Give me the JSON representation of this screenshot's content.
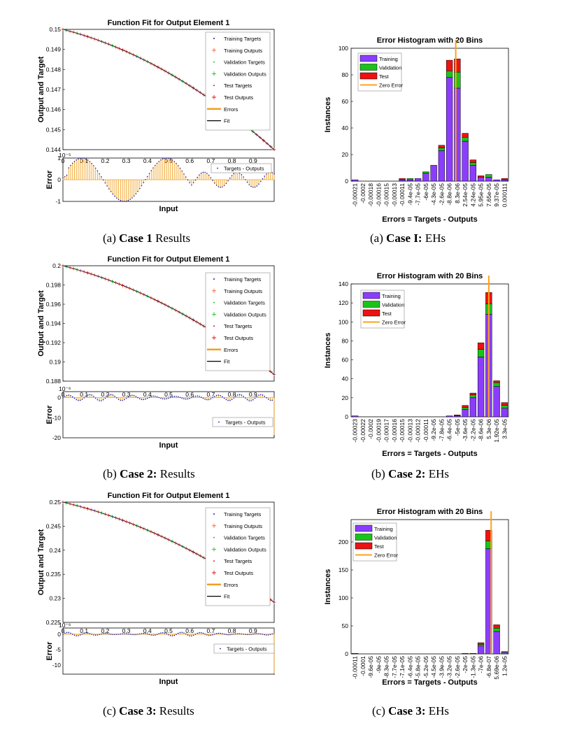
{
  "colors": {
    "training": "#8b3dff",
    "validation": "#19c419",
    "test": "#ee1111",
    "zero_error": "#ffa21a",
    "errors": "#f0a020",
    "target_dot": "#1a1aa0"
  },
  "chart_data": [
    {
      "type": "line",
      "id": "fit1",
      "title": "Function Fit for Output Element 1",
      "ylabel": "Output and Target",
      "y_ticks": [
        "0.15",
        "0.149",
        "0.148",
        "0.147",
        "0.146",
        "0.145",
        "0.144"
      ],
      "ylim": [
        0.144,
        0.15
      ],
      "x_ticks": [
        "0",
        "0.1",
        "0.2",
        "0.3",
        "0.4",
        "0.5",
        "0.6",
        "0.7",
        "0.8",
        "0.9"
      ],
      "xlim": [
        0,
        1
      ],
      "curve": {
        "start": 0.15,
        "end": 0.144,
        "shape": 0.55
      },
      "legend": [
        "Training Targets",
        "Training Outputs",
        "Validation Targets",
        "Validation Outputs",
        "Test Targets",
        "Test Outputs",
        "Errors",
        "Fit"
      ],
      "error": {
        "ylabel": "Error",
        "xlabel": "Input",
        "exponent": "10⁻⁵",
        "y_ticks": [
          "1",
          "0",
          "-1"
        ],
        "ylim": [
          -1,
          1
        ],
        "legend": "Targets - Outputs",
        "pattern": "wave1"
      },
      "caption": {
        "prefix": "(a) ",
        "bold": "Case 1",
        "suffix": " Results"
      }
    },
    {
      "type": "bar",
      "id": "hist1",
      "title": "Error Histogram with 20 Bins",
      "ylabel": "Instances",
      "xlabel": "Errors = Targets - Outputs",
      "y_ticks": [
        "100",
        "80",
        "60",
        "40",
        "20",
        "0"
      ],
      "ylim": [
        0,
        100
      ],
      "categories": [
        "-0.00021",
        "-0.0002",
        "-0.00018",
        "-0.00016",
        "-0.00015",
        "-0.00013",
        "-0.00011",
        "-9.4e-05",
        "-7.7e-05",
        "-6e-05",
        "-4.3e-05",
        "-2.6e-05",
        "-8.8e-06",
        "8.3e-06",
        "2.54e-05",
        "4.24e-05",
        "5.95e-05",
        "7.65e-05",
        "9.37e-05",
        "0.000111"
      ],
      "series": [
        {
          "name": "Training",
          "values": [
            1,
            0,
            0,
            0,
            0,
            0,
            1,
            1,
            2,
            6,
            12,
            23,
            78,
            70,
            30,
            12,
            3,
            3,
            1,
            1
          ]
        },
        {
          "name": "Validation",
          "values": [
            0,
            0,
            0,
            0,
            0,
            0,
            0,
            1,
            0,
            1,
            0,
            2,
            5,
            12,
            3,
            2,
            0,
            2,
            0,
            0
          ]
        },
        {
          "name": "Test",
          "values": [
            0,
            0,
            0,
            0,
            0,
            0,
            1,
            0,
            0,
            0,
            0,
            2,
            8,
            10,
            3,
            2,
            1,
            0,
            0,
            1
          ]
        }
      ],
      "zero_error_index": 12.8,
      "legend": [
        "Training",
        "Validation",
        "Test",
        "Zero Error"
      ],
      "caption": {
        "prefix": "(a) ",
        "bold": "Case I:",
        "suffix": " EHs"
      }
    },
    {
      "type": "line",
      "id": "fit2",
      "title": "Function Fit for Output Element 1",
      "ylabel": "Output and Target",
      "y_ticks": [
        "0.2",
        "0.198",
        "0.196",
        "0.194",
        "0.192",
        "0.19",
        "0.188"
      ],
      "ylim": [
        0.188,
        0.2
      ],
      "x_ticks": [
        "0",
        "0.1",
        "0.2",
        "0.3",
        "0.4",
        "0.5",
        "0.6",
        "0.7",
        "0.8",
        "0.9"
      ],
      "xlim": [
        0,
        1
      ],
      "curve": {
        "start": 0.2,
        "end": 0.1887,
        "shape": 0.5
      },
      "legend": [
        "Training Targets",
        "Training Outputs",
        "Validation Targets",
        "Validation Outputs",
        "Test Targets",
        "Test Outputs",
        "Errors",
        "Fit"
      ],
      "error": {
        "ylabel": "Error",
        "xlabel": "Input",
        "exponent": "10⁻⁶",
        "y_ticks": [
          "0",
          "-10",
          "-20"
        ],
        "ylim": [
          -20,
          3
        ],
        "legend": "Targets - Outputs",
        "pattern": "wave2"
      },
      "caption": {
        "prefix": "(b) ",
        "bold": "Case 2:",
        "suffix": " Results"
      }
    },
    {
      "type": "bar",
      "id": "hist2",
      "title": "Error Histogram with 20 Bins",
      "ylabel": "Instances",
      "xlabel": "Errors = Targets - Outputs",
      "y_ticks": [
        "140",
        "120",
        "100",
        "80",
        "60",
        "40",
        "20",
        "0"
      ],
      "ylim": [
        0,
        140
      ],
      "categories": [
        "-0.00023",
        "-0.00022",
        "-0.0002",
        "-0.00019",
        "-0.00017",
        "-0.00016",
        "-0.00015",
        "-0.00013",
        "-0.00012",
        "-0.00011",
        "-9.2e-05",
        "-7.8e-05",
        "-6.4e-05",
        "-5e-05",
        "-3.6e-05",
        "-2.2e-05",
        "-8.6e-06",
        "5.3e-06",
        "1.92e-05",
        "3.3e-05"
      ],
      "series": [
        {
          "name": "Training",
          "values": [
            1,
            0,
            0,
            0,
            0,
            0,
            0,
            0,
            0,
            0,
            0,
            0,
            1,
            1,
            8,
            20,
            63,
            108,
            32,
            9
          ]
        },
        {
          "name": "Validation",
          "values": [
            0,
            0,
            0,
            0,
            0,
            0,
            0,
            0,
            0,
            0,
            0,
            0,
            0,
            0,
            2,
            3,
            8,
            11,
            4,
            3
          ]
        },
        {
          "name": "Test",
          "values": [
            0,
            0,
            0,
            0,
            0,
            0,
            0,
            0,
            0,
            0,
            0,
            0,
            0,
            1,
            2,
            2,
            7,
            12,
            2,
            3
          ]
        }
      ],
      "zero_error_index": 17.0,
      "legend": [
        "Training",
        "Validation",
        "Test",
        "Zero Error"
      ],
      "caption": {
        "prefix": "(b) ",
        "bold": "Case 2:",
        "suffix": " EHs"
      }
    },
    {
      "type": "line",
      "id": "fit3",
      "title": "Function Fit for Output Element 1",
      "ylabel": "Output and Target",
      "y_ticks": [
        "0.25",
        "0.245",
        "0.24",
        "0.235",
        "0.23",
        "0.225"
      ],
      "ylim": [
        0.225,
        0.25
      ],
      "x_ticks": [
        "0",
        "0.1",
        "0.2",
        "0.3",
        "0.4",
        "0.5",
        "0.6",
        "0.7",
        "0.8",
        "0.9"
      ],
      "xlim": [
        0,
        1
      ],
      "curve": {
        "start": 0.25,
        "end": 0.2292,
        "shape": 0.5
      },
      "legend": [
        "Training Targets",
        "Training Outputs",
        "Validation Targets",
        "Validation Outputs",
        "Test Targets",
        "Test Outputs",
        "Errors",
        "Fit"
      ],
      "error": {
        "ylabel": "Error",
        "xlabel": "Input",
        "exponent": "10⁻⁶",
        "y_ticks": [
          "0",
          "-5",
          "-10"
        ],
        "ylim": [
          -13,
          2
        ],
        "legend": "Targets - Outputs",
        "pattern": "wave3"
      },
      "caption": {
        "prefix": "(c) ",
        "bold": "Case 3:",
        "suffix": " Results"
      }
    },
    {
      "type": "bar",
      "id": "hist3",
      "title": "Error Histogram with 20 Bins",
      "ylabel": "Instances",
      "xlabel": "Errors = Targets - Outputs",
      "y_ticks": [
        "200",
        "150",
        "100",
        "50",
        "0"
      ],
      "ylim": [
        0,
        240
      ],
      "categories": [
        "-0.00011",
        "-0.0001",
        "-9.6e-05",
        "-9e-05",
        "-8.3e-05",
        "-7.7e-05",
        "-7.1e-05",
        "-6.4e-05",
        "-5.8e-05",
        "-5.2e-05",
        "-4.5e-05",
        "-3.9e-05",
        "-3.2e-05",
        "-2.6e-05",
        "-2e-05",
        "-1.3e-05",
        "-7e-06",
        "-6.8e-07",
        "5.69e-06",
        "1.2e-05"
      ],
      "series": [
        {
          "name": "Training",
          "values": [
            1,
            0,
            0,
            0,
            0,
            0,
            0,
            0,
            0,
            0,
            0,
            0,
            0,
            0,
            1,
            1,
            14,
            188,
            40,
            3
          ]
        },
        {
          "name": "Validation",
          "values": [
            0,
            0,
            0,
            0,
            0,
            0,
            0,
            0,
            0,
            0,
            0,
            0,
            0,
            0,
            0,
            0,
            3,
            14,
            6,
            1
          ]
        },
        {
          "name": "Test",
          "values": [
            0,
            0,
            0,
            0,
            0,
            0,
            0,
            0,
            0,
            0,
            0,
            0,
            0,
            0,
            0,
            0,
            3,
            19,
            6,
            0
          ]
        }
      ],
      "zero_error_index": 17.3,
      "legend": [
        "Training",
        "Validation",
        "Test",
        "Zero Error"
      ],
      "caption": {
        "prefix": "(c) ",
        "bold": "Case 3:",
        "suffix": " EHs"
      }
    }
  ]
}
